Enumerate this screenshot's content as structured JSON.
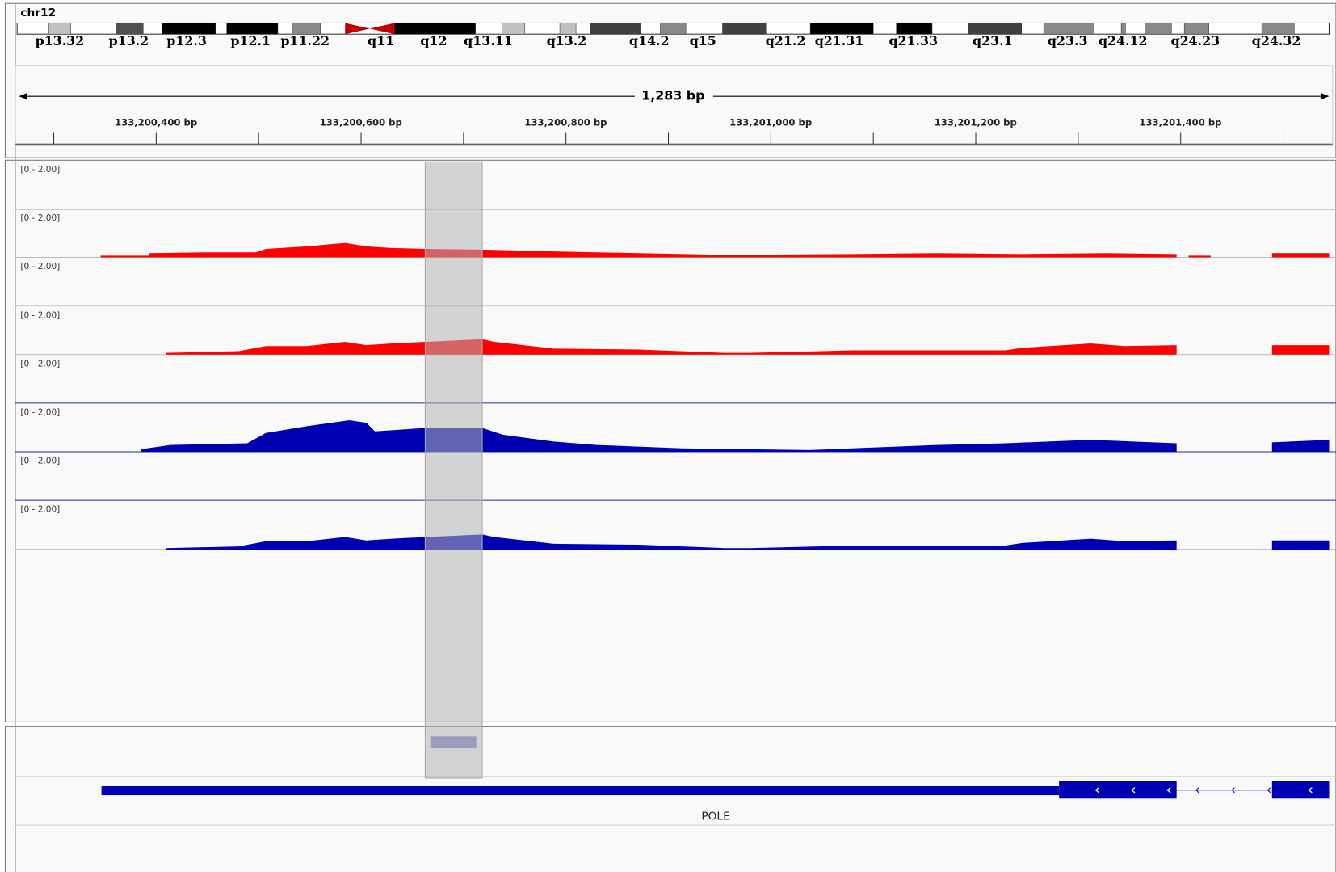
{
  "chromosome": "chr12",
  "band_labels": [
    "p13.32",
    "p13.2",
    "p12.3",
    "p12.1",
    "p11.22",
    "q11",
    "q12",
    "q13.11",
    "q13.2",
    "q14.2",
    "q15",
    "q21.2",
    "q21.31",
    "q21.33",
    "q23.1",
    "q23.3",
    "q24.12",
    "q24.23",
    "q24.32"
  ],
  "span": "1,283 bp",
  "ruler_ticks": [
    "133,200,400 bp",
    "133,200,600 bp",
    "133,200,800 bp",
    "133,201,000 bp",
    "133,201,200 bp",
    "133,201,400 bp"
  ],
  "tracks": [
    {
      "range": "[0 - 2.00]"
    },
    {
      "range": "[0 - 2.00]"
    },
    {
      "range": "[0 - 2.00]"
    },
    {
      "range": "[0 - 2.00]"
    },
    {
      "range": "[0 - 2.00]"
    },
    {
      "range": "[0 - 2.00]"
    },
    {
      "range": "[0 - 2.00]"
    },
    {
      "range": "[0 - 2.00]"
    }
  ],
  "gene": "POLE"
}
